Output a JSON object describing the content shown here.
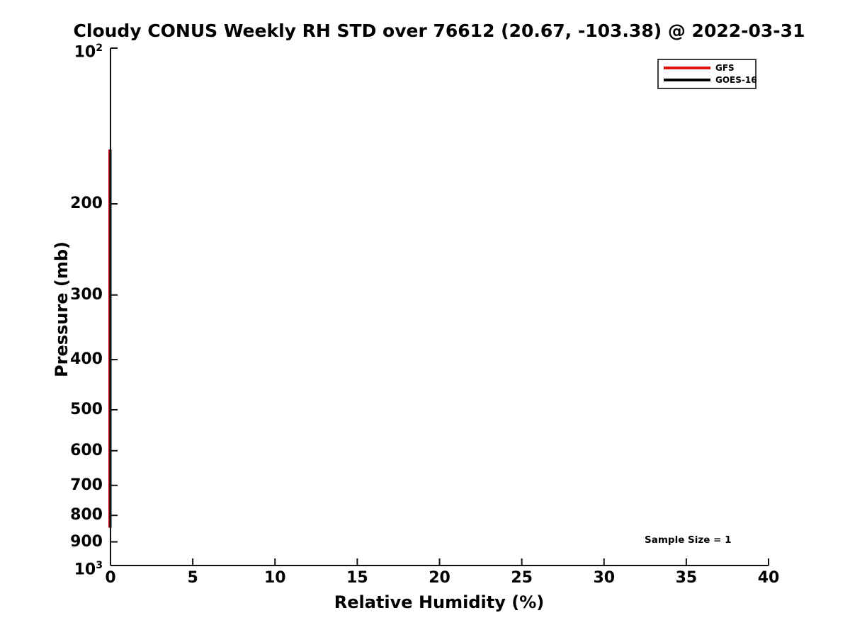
{
  "chart_data": {
    "type": "line",
    "title": "Cloudy CONUS Weekly RH STD over 76612 (20.67, -103.38) @ 2022-03-31",
    "xlabel": "Relative Humidity (%)",
    "ylabel": "Pressure (mb)",
    "xlim": [
      0,
      40
    ],
    "x_ticks": [
      0,
      5,
      10,
      15,
      20,
      25,
      30,
      35,
      40
    ],
    "x_tick_labels": [
      "0",
      "5",
      "10",
      "15",
      "20",
      "25",
      "30",
      "35",
      "40"
    ],
    "ylim": [
      100,
      1000
    ],
    "y_scale": "log",
    "y_direction": "increasing-downward",
    "y_ticks": [
      100,
      200,
      300,
      400,
      500,
      600,
      700,
      800,
      900,
      1000
    ],
    "y_tick_labels": [
      "10^2",
      "200",
      "300",
      "400",
      "500",
      "600",
      "700",
      "800",
      "900",
      "10^3"
    ],
    "grid": false,
    "axis_color": "#111111",
    "legend": {
      "position": "upper-right",
      "border_color": "#3c3c3c"
    },
    "series": [
      {
        "name": "GFS",
        "color": "#dd0f0f",
        "linewidth": 4,
        "x": [
          0,
          0
        ],
        "pressure": [
          157,
          845
        ]
      },
      {
        "name": "GOES-16",
        "color": "#000000",
        "linewidth": 3,
        "x": [
          0,
          0
        ],
        "pressure": [
          157,
          845
        ]
      }
    ],
    "annotations": [
      {
        "text": "Sample Size = 1",
        "x": 32.5,
        "pressure": 880
      }
    ]
  }
}
